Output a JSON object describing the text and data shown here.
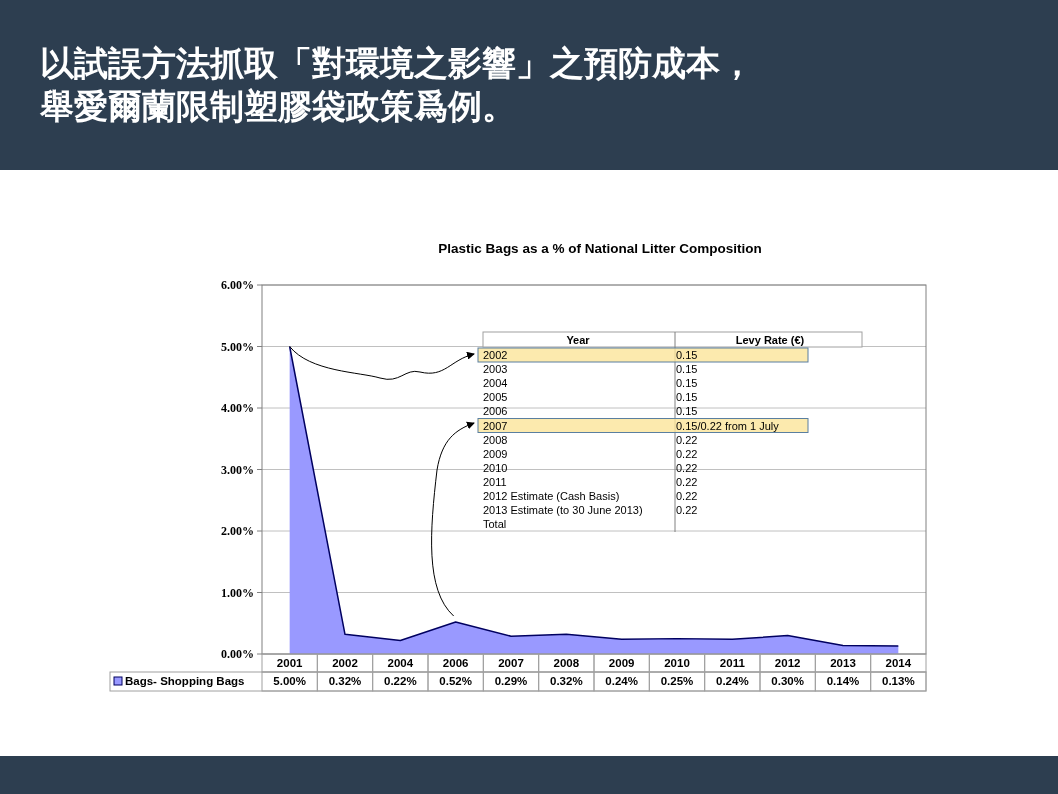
{
  "chart_data": {
    "type": "area",
    "title": "以試誤方法抓取「對環境之影響」之預防成本，舉愛爾蘭限制塑膠袋政策爲例。",
    "subtitle": "Plastic Bags as a % of National Litter Composition",
    "categories": [
      "2001",
      "2002",
      "2004",
      "2006",
      "2007",
      "2008",
      "2009",
      "2010",
      "2011",
      "2012",
      "2013",
      "2014"
    ],
    "series": [
      {
        "name": "Bags- Shopping Bags",
        "color": "#9999ff",
        "values": [
          5.0,
          0.32,
          0.22,
          0.52,
          0.29,
          0.32,
          0.24,
          0.25,
          0.24,
          0.3,
          0.14,
          0.13
        ],
        "value_labels": [
          "5.00%",
          "0.32%",
          "0.22%",
          "0.52%",
          "0.29%",
          "0.32%",
          "0.24%",
          "0.25%",
          "0.24%",
          "0.30%",
          "0.14%",
          "0.13%"
        ]
      }
    ],
    "ylim": [
      0,
      6
    ],
    "yticks": [
      {
        "value": 0,
        "label": "0.00%"
      },
      {
        "value": 1,
        "label": "1.00%"
      },
      {
        "value": 2,
        "label": "2.00%"
      },
      {
        "value": 3,
        "label": "3.00%"
      },
      {
        "value": 4,
        "label": "4.00%"
      },
      {
        "value": 5,
        "label": "5.00%"
      },
      {
        "value": 6,
        "label": "6.00%"
      }
    ],
    "grid": "y",
    "annotations": [
      "Year",
      "Levy Rate (€)",
      "2002",
      "0.15",
      "2003",
      "0.15",
      "2004",
      "0.15",
      "2005",
      "0.15",
      "2006",
      "0.15",
      "2007",
      "0.15/0.22 from 1 July",
      "2008",
      "0.22",
      "2009",
      "0.22",
      "2010",
      "0.22",
      "2011",
      "0.22",
      "2012 Estimate (Cash Basis)",
      "0.22",
      "2013 Estimate (to 30 June 2013)",
      "0.22",
      "Total"
    ]
  }
}
